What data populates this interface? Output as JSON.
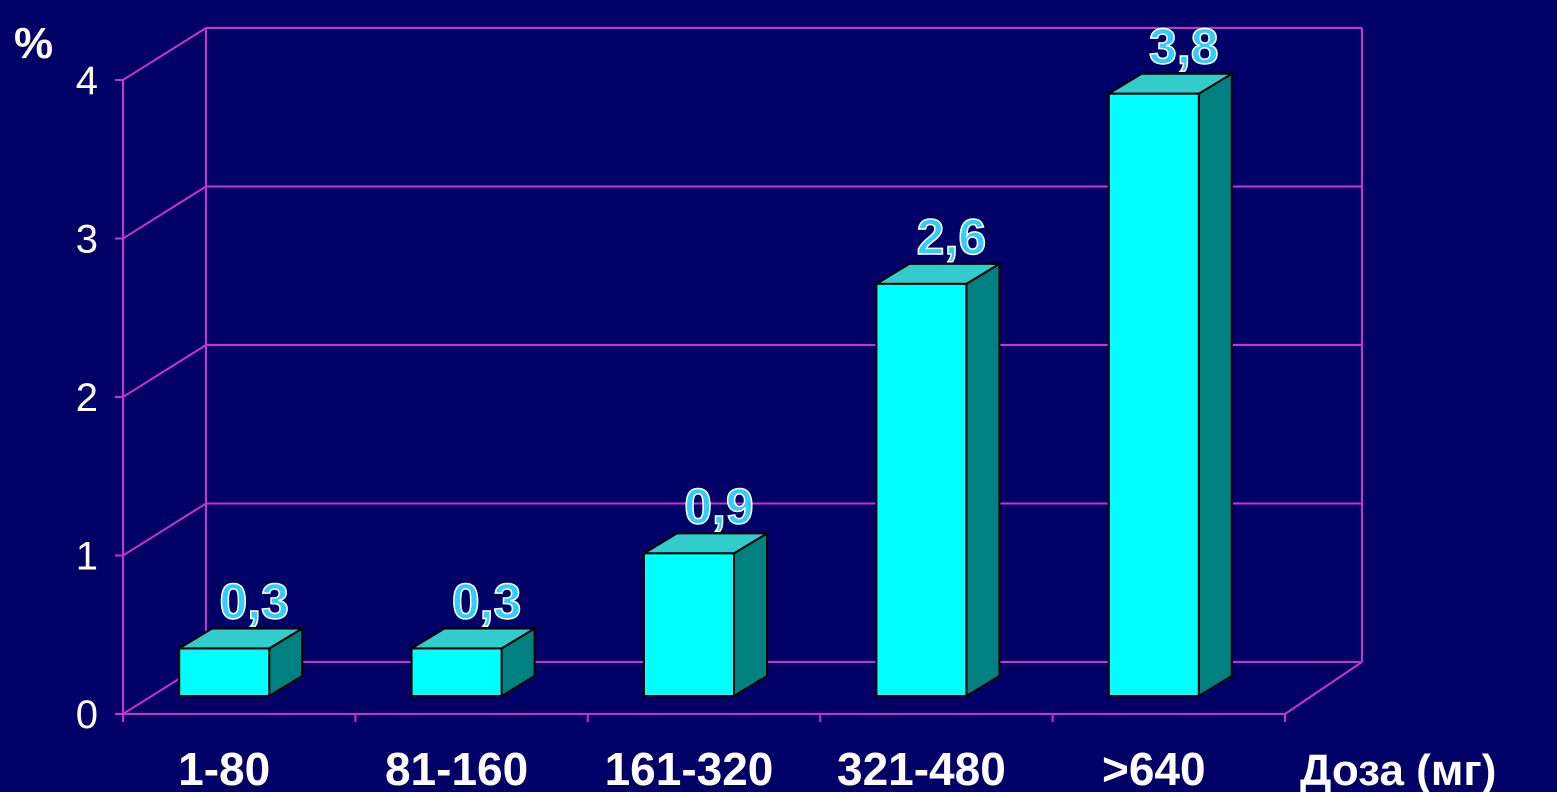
{
  "chart_data": {
    "type": "bar",
    "style": "3d",
    "categories": [
      "1-80",
      "81-160",
      "161-320",
      "321-480",
      ">640"
    ],
    "values": [
      0.3,
      0.3,
      0.9,
      2.6,
      3.8
    ],
    "data_labels": [
      "0,3",
      "0,3",
      "0,9",
      "2,6",
      "3,8"
    ],
    "title": "",
    "xlabel": "Доза (мг)",
    "ylabel": "%",
    "ylim": [
      0,
      4
    ],
    "yticks": [
      "0",
      "1",
      "2",
      "3",
      "4"
    ],
    "grid": true,
    "legend": "none",
    "colors": {
      "background": "#000066",
      "bar_front": "#00FFFF",
      "bar_top": "#33CCCC",
      "bar_side": "#008080",
      "grid": "#CC33CC",
      "data_label": "#33CCFF",
      "text": "#FFFFFF"
    }
  }
}
